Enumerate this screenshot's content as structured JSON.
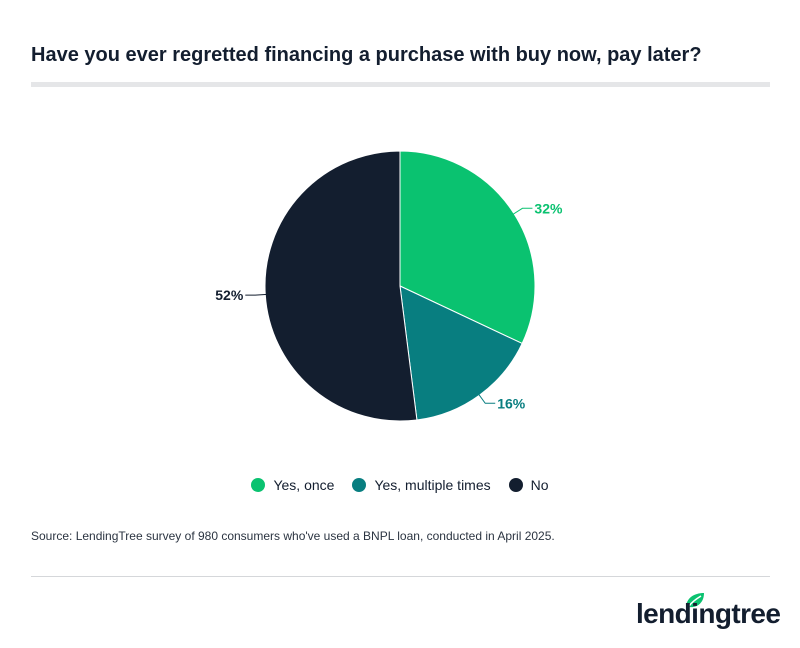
{
  "title": "Have you ever regretted financing a purchase with buy now, pay later?",
  "source": "Source: LendingTree survey of 980 consumers who've used a BNPL loan, conducted in April 2025.",
  "logo": {
    "text": "lendingtree",
    "icon": "leaf-icon"
  },
  "colors": {
    "yes_once": "#0ac270",
    "yes_multiple": "#087e80",
    "no": "#131e2f"
  },
  "chart_data": {
    "type": "pie",
    "title": "Have you ever regretted financing a purchase with buy now, pay later?",
    "categories": [
      "Yes, once",
      "Yes, multiple times",
      "No"
    ],
    "values": [
      32,
      16,
      52
    ],
    "labels": [
      "32%",
      "16%",
      "52%"
    ],
    "colors": [
      "#0ac270",
      "#087e80",
      "#131e2f"
    ],
    "label_colors": [
      "#0ac270",
      "#087e80",
      "#131e2f"
    ],
    "legend_position": "bottom"
  }
}
